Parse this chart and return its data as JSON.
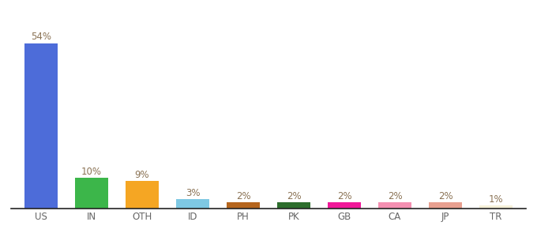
{
  "categories": [
    "US",
    "IN",
    "OTH",
    "ID",
    "PH",
    "PK",
    "GB",
    "CA",
    "JP",
    "TR"
  ],
  "values": [
    54,
    10,
    9,
    3,
    2,
    2,
    2,
    2,
    2,
    1
  ],
  "bar_colors": [
    "#4d6cd9",
    "#3cb64a",
    "#f5a623",
    "#7ec8e3",
    "#b5651d",
    "#2d6e2d",
    "#f01899",
    "#f48fb1",
    "#e8a090",
    "#f5f0d8"
  ],
  "label_fontsize": 8.5,
  "tick_fontsize": 8.5,
  "label_color": "#8b7355",
  "tick_color": "#666666",
  "background_color": "#ffffff",
  "ylim": [
    0,
    62
  ],
  "bar_width": 0.65
}
